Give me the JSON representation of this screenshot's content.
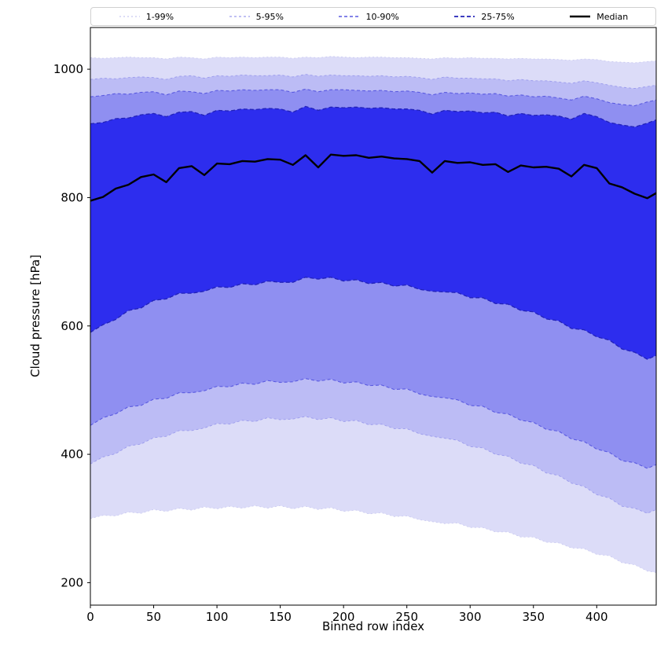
{
  "chart_data": {
    "type": "band",
    "xlabel": "Binned row index",
    "ylabel": "Cloud pressure [hPa]",
    "xlim": [
      0,
      447
    ],
    "ylim": [
      165,
      1065
    ],
    "xticks": [
      0,
      50,
      100,
      150,
      200,
      250,
      300,
      350,
      400
    ],
    "yticks": [
      200,
      400,
      600,
      800,
      1000
    ],
    "x": [
      0,
      10,
      20,
      30,
      40,
      50,
      60,
      70,
      80,
      90,
      100,
      110,
      120,
      130,
      140,
      150,
      160,
      170,
      180,
      190,
      200,
      210,
      220,
      230,
      240,
      250,
      260,
      270,
      280,
      290,
      300,
      310,
      320,
      330,
      340,
      350,
      360,
      370,
      380,
      390,
      400,
      410,
      420,
      430,
      440,
      447
    ],
    "percentiles": {
      "p01": [
        300,
        305,
        304,
        310,
        308,
        314,
        311,
        316,
        313,
        318,
        315,
        319,
        316,
        320,
        316,
        320,
        315,
        319,
        314,
        317,
        311,
        313,
        307,
        309,
        303,
        304,
        298,
        295,
        292,
        293,
        286,
        286,
        279,
        279,
        271,
        271,
        263,
        262,
        254,
        253,
        244,
        242,
        231,
        228,
        218,
        216
      ],
      "p05": [
        385,
        396,
        401,
        413,
        416,
        426,
        428,
        437,
        437,
        441,
        448,
        447,
        453,
        451,
        457,
        454,
        455,
        459,
        454,
        457,
        451,
        453,
        446,
        447,
        440,
        440,
        432,
        428,
        425,
        422,
        412,
        410,
        400,
        397,
        386,
        383,
        371,
        367,
        355,
        350,
        337,
        332,
        319,
        316,
        308,
        314
      ],
      "p10": [
        445,
        457,
        463,
        474,
        476,
        486,
        487,
        496,
        496,
        499,
        506,
        505,
        511,
        509,
        515,
        512,
        513,
        518,
        514,
        517,
        511,
        513,
        507,
        508,
        501,
        502,
        494,
        490,
        488,
        485,
        476,
        475,
        465,
        463,
        453,
        450,
        439,
        436,
        424,
        420,
        408,
        403,
        390,
        387,
        378,
        384
      ],
      "p25": [
        590,
        602,
        610,
        624,
        628,
        640,
        642,
        651,
        651,
        654,
        661,
        660,
        666,
        664,
        670,
        668,
        668,
        676,
        673,
        676,
        670,
        672,
        666,
        668,
        662,
        664,
        657,
        654,
        653,
        652,
        644,
        644,
        635,
        634,
        624,
        622,
        611,
        608,
        596,
        594,
        583,
        578,
        564,
        559,
        548,
        554
      ],
      "p75": [
        915,
        917,
        923,
        924,
        929,
        931,
        926,
        933,
        934,
        928,
        936,
        935,
        938,
        937,
        939,
        938,
        933,
        942,
        936,
        941,
        940,
        941,
        939,
        940,
        938,
        938,
        936,
        930,
        936,
        934,
        935,
        932,
        933,
        927,
        931,
        928,
        929,
        927,
        922,
        931,
        926,
        917,
        913,
        910,
        916,
        921
      ],
      "p90": [
        957,
        959,
        962,
        961,
        964,
        965,
        960,
        966,
        965,
        962,
        967,
        966,
        968,
        967,
        968,
        968,
        964,
        969,
        965,
        968,
        968,
        967,
        966,
        967,
        965,
        966,
        964,
        960,
        964,
        962,
        963,
        961,
        962,
        958,
        960,
        957,
        958,
        955,
        952,
        958,
        954,
        948,
        945,
        943,
        949,
        952
      ],
      "p95": [
        984,
        986,
        985,
        987,
        988,
        987,
        984,
        989,
        990,
        986,
        990,
        989,
        991,
        990,
        990,
        991,
        988,
        992,
        989,
        991,
        990,
        990,
        989,
        990,
        988,
        989,
        987,
        984,
        988,
        986,
        986,
        985,
        985,
        982,
        984,
        982,
        982,
        980,
        978,
        982,
        979,
        975,
        972,
        970,
        973,
        975
      ],
      "p99": [
        1018,
        1017,
        1018,
        1019,
        1018,
        1018,
        1016,
        1019,
        1018,
        1016,
        1019,
        1018,
        1019,
        1018,
        1019,
        1019,
        1017,
        1019,
        1018,
        1020,
        1019,
        1018,
        1019,
        1019,
        1018,
        1018,
        1017,
        1016,
        1018,
        1017,
        1018,
        1017,
        1017,
        1016,
        1017,
        1016,
        1016,
        1015,
        1014,
        1016,
        1015,
        1012,
        1011,
        1010,
        1012,
        1013
      ]
    },
    "median": [
      795,
      801,
      814,
      820,
      832,
      836,
      824,
      846,
      849,
      835,
      853,
      852,
      857,
      856,
      860,
      859,
      851,
      866,
      847,
      867,
      865,
      866,
      862,
      864,
      861,
      860,
      857,
      839,
      857,
      854,
      855,
      851,
      852,
      840,
      850,
      847,
      848,
      845,
      833,
      851,
      846,
      822,
      816,
      806,
      799,
      807
    ],
    "bands": [
      {
        "name": "1-99",
        "label": "1-99%",
        "lower": "p01",
        "upper": "p99",
        "fill": "#dcdcf8",
        "edge": "#c8c8f0",
        "dash": "2 3",
        "edge_width": 0.8
      },
      {
        "name": "5-95",
        "label": "5-95%",
        "lower": "p05",
        "upper": "p95",
        "fill": "#bcbcf5",
        "edge": "#9a9aec",
        "dash": "3 3",
        "edge_width": 0.9
      },
      {
        "name": "10-90",
        "label": "10-90%",
        "lower": "p10",
        "upper": "p90",
        "fill": "#8f8ff1",
        "edge": "#5a5ae0",
        "dash": "4 3",
        "edge_width": 1.1
      },
      {
        "name": "25-75",
        "label": "25-75%",
        "lower": "p25",
        "upper": "p75",
        "fill": "#2d2dee",
        "edge": "#2222b8",
        "dash": "5 3",
        "edge_width": 1.3
      }
    ],
    "median_style": {
      "label": "Median",
      "color": "#000000",
      "width": 2.4
    },
    "legend_position": "top",
    "grid": false
  }
}
